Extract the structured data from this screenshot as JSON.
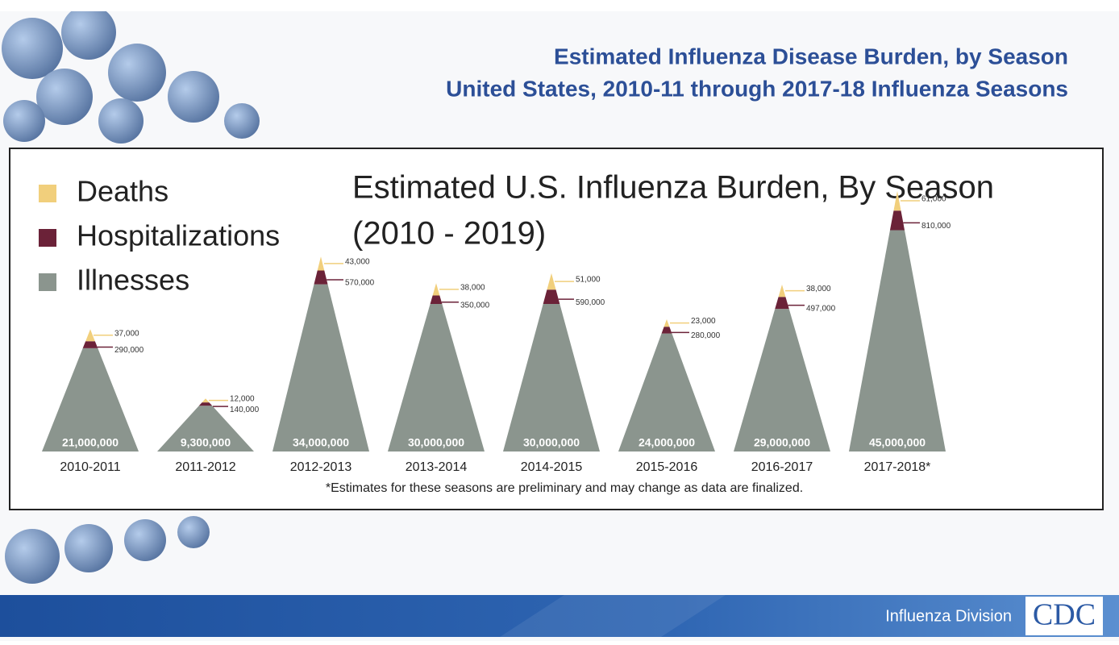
{
  "header": {
    "title": [
      "Estimated Influenza Disease Burden, by Season",
      "United States, 2010-11 through 2017-18 Influenza Seasons"
    ]
  },
  "chart_data": {
    "type": "pyramid",
    "title": [
      "Estimated U.S. Influenza Burden, By Season",
      "(2010 - 2019)"
    ],
    "categories": [
      "2010-2011",
      "2011-2012",
      "2012-2013",
      "2013-2014",
      "2014-2015",
      "2015-2016",
      "2016-2017",
      "2017-2018*"
    ],
    "series": [
      {
        "name": "Deaths",
        "color": "#f1cf7c",
        "values": [
          37000,
          12000,
          43000,
          38000,
          51000,
          23000,
          38000,
          61000
        ],
        "value_labels": [
          "37,000",
          "12,000",
          "43,000",
          "38,000",
          "51,000",
          "23,000",
          "38,000",
          "61,000"
        ]
      },
      {
        "name": "Hospitalizations",
        "color": "#6b2238",
        "values": [
          290000,
          140000,
          570000,
          350000,
          590000,
          280000,
          497000,
          810000
        ],
        "value_labels": [
          "290,000",
          "140,000",
          "570,000",
          "350,000",
          "590,000",
          "280,000",
          "497,000",
          "810,000"
        ]
      },
      {
        "name": "Illnesses",
        "color": "#8b958e",
        "values": [
          21000000,
          9300000,
          34000000,
          30000000,
          30000000,
          24000000,
          29000000,
          45000000
        ],
        "value_labels": [
          "21,000,000",
          "9,300,000",
          "34,000,000",
          "30,000,000",
          "30,000,000",
          "24,000,000",
          "29,000,000",
          "45,000,000"
        ]
      }
    ],
    "footnote": "*Estimates for these seasons are preliminary and may change as data are finalized."
  },
  "footer": {
    "division": "Influenza Division",
    "logo": "CDC"
  }
}
